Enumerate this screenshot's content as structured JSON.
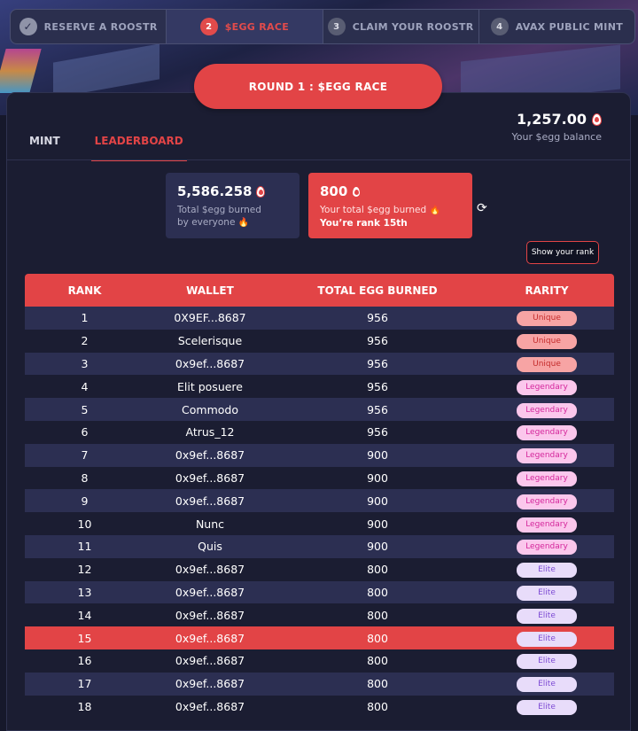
{
  "steps": [
    {
      "num": "✓",
      "label": "RESERVE A ROOSTR",
      "state": "done"
    },
    {
      "num": "2",
      "label": "$EGG RACE",
      "state": "active"
    },
    {
      "num": "3",
      "label": "CLAIM YOUR ROOSTR",
      "state": "todo"
    },
    {
      "num": "4",
      "label": "AVAX PUBLIC MINT",
      "state": "todo"
    }
  ],
  "round_label": "ROUND 1 : $EGG RACE",
  "tabs": {
    "mint": "MINT",
    "leaderboard": "LEADERBOARD"
  },
  "balance": {
    "amount": "1,257.00",
    "label": "Your $egg balance"
  },
  "total_burned": {
    "amount": "5,586.258",
    "desc1": "Total $egg burned",
    "desc2": "by everyone"
  },
  "your_burned": {
    "amount": "800",
    "desc": "Your total $egg burned",
    "rank": "You’re rank 15th"
  },
  "show_rank_label": "Show your rank",
  "table": {
    "headers": [
      "RANK",
      "WALLET",
      "TOTAL EGG BURNED",
      "RARITY"
    ],
    "rows": [
      {
        "rank": "1",
        "wallet": "0X9EF...8687",
        "burned": "956",
        "rarity": "Unique"
      },
      {
        "rank": "2",
        "wallet": "Scelerisque",
        "burned": "956",
        "rarity": "Unique"
      },
      {
        "rank": "3",
        "wallet": "0x9ef...8687",
        "burned": "956",
        "rarity": "Unique"
      },
      {
        "rank": "4",
        "wallet": "Elit posuere",
        "burned": "956",
        "rarity": "Legendary"
      },
      {
        "rank": "5",
        "wallet": "Commodo",
        "burned": "956",
        "rarity": "Legendary"
      },
      {
        "rank": "6",
        "wallet": "Atrus_12",
        "burned": "956",
        "rarity": "Legendary"
      },
      {
        "rank": "7",
        "wallet": "0x9ef...8687",
        "burned": "900",
        "rarity": "Legendary"
      },
      {
        "rank": "8",
        "wallet": "0x9ef...8687",
        "burned": "900",
        "rarity": "Legendary"
      },
      {
        "rank": "9",
        "wallet": "0x9ef...8687",
        "burned": "900",
        "rarity": "Legendary"
      },
      {
        "rank": "10",
        "wallet": "Nunc",
        "burned": "900",
        "rarity": "Legendary"
      },
      {
        "rank": "11",
        "wallet": "Quis",
        "burned": "900",
        "rarity": "Legendary"
      },
      {
        "rank": "12",
        "wallet": "0x9ef...8687",
        "burned": "800",
        "rarity": "Elite"
      },
      {
        "rank": "13",
        "wallet": "0x9ef...8687",
        "burned": "800",
        "rarity": "Elite"
      },
      {
        "rank": "14",
        "wallet": "0x9ef...8687",
        "burned": "800",
        "rarity": "Elite"
      },
      {
        "rank": "15",
        "wallet": "0x9ef...8687",
        "burned": "800",
        "rarity": "Elite",
        "highlight": true
      },
      {
        "rank": "16",
        "wallet": "0x9ef...8687",
        "burned": "800",
        "rarity": "Elite"
      },
      {
        "rank": "17",
        "wallet": "0x9ef...8687",
        "burned": "800",
        "rarity": "Elite"
      },
      {
        "rank": "18",
        "wallet": "0x9ef...8687",
        "burned": "800",
        "rarity": "Elite"
      }
    ]
  },
  "colors": {
    "accent": "#e24446",
    "panel": "#1b1d32",
    "row_alt": "#2c2f52"
  }
}
